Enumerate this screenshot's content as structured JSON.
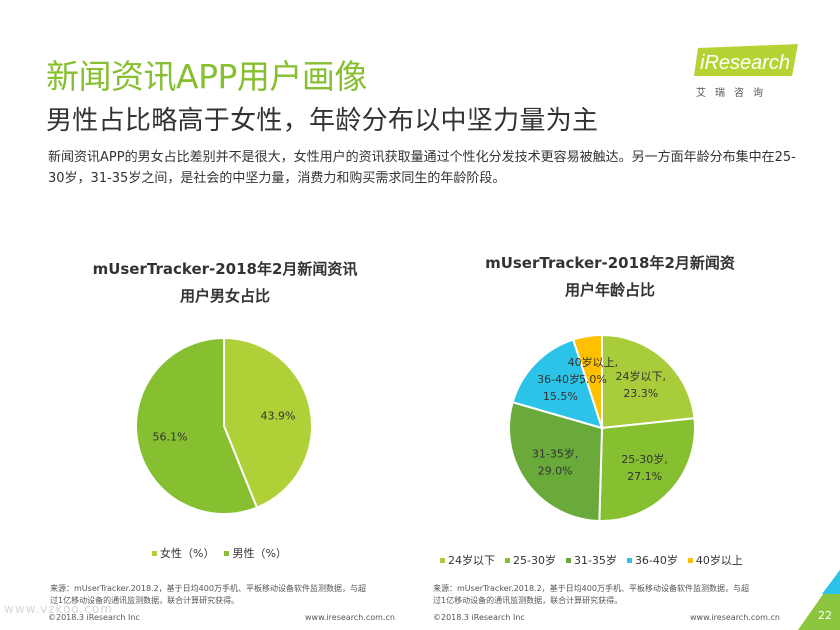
{
  "brand": {
    "logo_text": "iResearch",
    "logo_sub": "艾瑞咨询",
    "accent": "#86bf2f"
  },
  "page": {
    "title": "新闻资讯APP用户画像",
    "subtitle": "男性占比略高于女性，年龄分布以中坚力量为主",
    "description": "新闻资讯APP的男女占比差别并不是很大，女性用户的资讯获取量通过个性化分发技术更容易被触达。另一方面年龄分布集中在25-30岁，31-35岁之间，是社会的中坚力量，消费力和购买需求同生的年龄阶段。",
    "page_number": "22",
    "watermark": "www.vzkoo.com"
  },
  "chart_data": [
    {
      "type": "pie",
      "title_lines": [
        "mUserTracker-2018年2月新闻资讯",
        "用户男女占比"
      ],
      "slices": [
        {
          "name": "女性（%）",
          "value": 43.9,
          "label": "43.9%",
          "color": "#b0d038"
        },
        {
          "name": "男性（%）",
          "value": 56.1,
          "label": "56.1%",
          "color": "#86bf2f"
        }
      ],
      "legend": [
        "女性（%）",
        "男性（%）"
      ],
      "legend_position": "bottom"
    },
    {
      "type": "pie",
      "title_lines": [
        "mUserTracker-2018年2月新闻资",
        "用户年龄占比"
      ],
      "slices": [
        {
          "name": "24岁以下",
          "value": 23.3,
          "label_lines": [
            "24岁以下,",
            "23.3%"
          ],
          "color": "#a9cd3a"
        },
        {
          "name": "25-30岁",
          "value": 27.1,
          "label_lines": [
            "25-30岁,",
            "27.1%"
          ],
          "color": "#86bf2f"
        },
        {
          "name": "31-35岁",
          "value": 29.0,
          "label_lines": [
            "31-35岁,",
            "29.0%"
          ],
          "color": "#6aaa3a"
        },
        {
          "name": "36-40岁",
          "value": 15.5,
          "label_lines": [
            "36-40岁,",
            "15.5%"
          ],
          "color": "#2cc3e8"
        },
        {
          "name": "40岁以上",
          "value": 5.0,
          "label_lines": [
            "40岁以上,",
            "5.0%"
          ],
          "color": "#ffc000"
        }
      ],
      "legend": [
        "24岁以下",
        "25-30岁",
        "31-35岁",
        "36-40岁",
        "40岁以上"
      ],
      "legend_position": "bottom"
    }
  ],
  "sources": [
    {
      "lines": [
        "来源：mUserTracker.2018.2，基于日均400万手机、平板移动设备软件监测数据，与超",
        "过1亿移动设备的通讯监测数据，联合计算研究获得。"
      ],
      "copyright": "©2018.3 iResearch Inc",
      "url": "www.iresearch.com.cn"
    },
    {
      "lines": [
        "来源：mUserTracker.2018.2，基于日均400万手机、平板移动设备软件监测数据，与超",
        "过1亿移动设备的通讯监测数据，联合计算研究获得。"
      ],
      "copyright": "©2018.3 iResearch Inc",
      "url": "www.iresearch.com.cn"
    }
  ]
}
